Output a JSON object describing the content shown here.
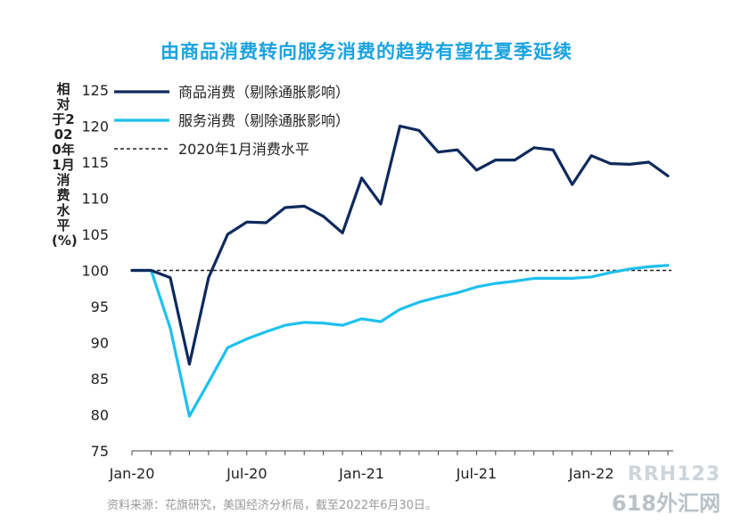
{
  "chart_data": {
    "type": "line",
    "title": "由商品消费转向服务消费的趋势有望在夏季延续",
    "ylabel": "相对于2020年1月消费水平(%)",
    "xlabel": "",
    "ylim": [
      75,
      125
    ],
    "yticks": [
      75,
      80,
      85,
      90,
      95,
      100,
      105,
      110,
      115,
      120,
      125
    ],
    "x": [
      "Jan-20",
      "Feb-20",
      "Mar-20",
      "Apr-20",
      "May-20",
      "Jun-20",
      "Jul-20",
      "Aug-20",
      "Sep-20",
      "Oct-20",
      "Nov-20",
      "Dec-20",
      "Jan-21",
      "Feb-21",
      "Mar-21",
      "Apr-21",
      "May-21",
      "Jun-21",
      "Jul-21",
      "Aug-21",
      "Sep-21",
      "Oct-21",
      "Nov-21",
      "Dec-21",
      "Jan-22",
      "Feb-22",
      "Mar-22",
      "Apr-22",
      "May-22"
    ],
    "xtick_labels": [
      {
        "index": 0,
        "label": "Jan-20"
      },
      {
        "index": 6,
        "label": "Jul-20"
      },
      {
        "index": 12,
        "label": "Jan-21"
      },
      {
        "index": 18,
        "label": "Jul-21"
      },
      {
        "index": 24,
        "label": "Jan-22"
      }
    ],
    "series": [
      {
        "name": "商品消费（剔除通胀影响）",
        "color": "#0e2a5c",
        "values": [
          100,
          100,
          99,
          87,
          99,
          105,
          106.7,
          106.6,
          108.7,
          108.9,
          107.5,
          105.2,
          112.8,
          109.2,
          120,
          119.4,
          116.4,
          116.7,
          113.9,
          115.3,
          115.3,
          117,
          116.7,
          111.9,
          115.9,
          114.8,
          114.7,
          115,
          113.1
        ]
      },
      {
        "name": "服务消费（剔除通胀影响）",
        "color": "#1ec0ee",
        "values": [
          100,
          100,
          92,
          79.8,
          84.5,
          89.3,
          90.5,
          91.5,
          92.4,
          92.8,
          92.7,
          92.4,
          93.3,
          92.9,
          94.6,
          95.6,
          96.3,
          96.9,
          97.7,
          98.2,
          98.5,
          98.9,
          98.9,
          98.9,
          99.1,
          99.7,
          100.2,
          100.5,
          100.7
        ]
      }
    ],
    "reference_line": {
      "name": "2020年1月消费水平",
      "value": 100,
      "color": "#222222",
      "style": "dashed"
    },
    "legend_position": "top-left",
    "grid": false
  },
  "source": "资料来源：花旗研究，美国经济分析局，截至2022年6月30日。",
  "watermark": {
    "line1": "RRH123",
    "line2": "618外汇网"
  }
}
